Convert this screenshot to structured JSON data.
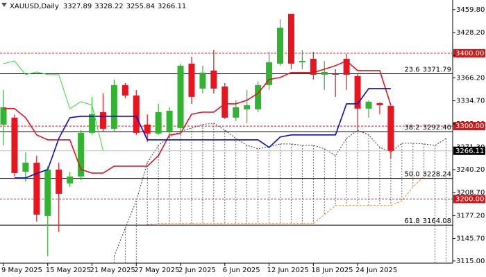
{
  "chart_data": {
    "type": "candlestick",
    "title": "XAUUSD,Daily",
    "categories": [
      "9 May 2025",
      null,
      null,
      null,
      "15 May 2025",
      null,
      null,
      null,
      "21 May 2025",
      null,
      null,
      null,
      "27 May 2025",
      null,
      null,
      null,
      "2 Jun 2025",
      null,
      null,
      null,
      "6 Jun 2025",
      null,
      null,
      null,
      "12 Jun 2025",
      null,
      null,
      null,
      "18 Jun 2025",
      null,
      null,
      null,
      "24 Jun 2025",
      null,
      null,
      null,
      null,
      null,
      null,
      null,
      null
    ],
    "open": [
      3302,
      3311.6,
      3237.5,
      3249.9,
      3176.7,
      3240.4,
      3221.4,
      3230.9,
      3290.7,
      3319.2,
      3296.4,
      3356.3,
      3342,
      3302.1,
      3289.8,
      3292.6,
      3297.4,
      3385.7,
      3351.5,
      3376.2,
      3354.4,
      3311.6,
      3323,
      3323,
      3356.3,
      3385.7,
      3454.1,
      3387.6,
      3392.4,
      3370.5,
      3371.5,
      3392.4,
      3368.6,
      3324,
      3331.6,
      3327.89,
      null,
      null,
      null,
      null,
      null
    ],
    "high": [
      3349.6,
      3316,
      3264,
      3259.4,
      3245,
      3249.9,
      3237.5,
      3294.5,
      3340.1,
      3344.9,
      3363.9,
      3359.1,
      3349.6,
      3316,
      3330.6,
      3326,
      3385.7,
      3395.2,
      3382.9,
      3404.7,
      3359.1,
      3335.4,
      3349.6,
      3361,
      3401.9,
      3446.5,
      3454.1,
      3404.7,
      3401.9,
      3389.5,
      3378.1,
      3399,
      3371.5,
      3335.4,
      3332.5,
      3328.22,
      null,
      null,
      null,
      null,
      null
    ],
    "low": [
      3273.6,
      3231,
      3224,
      3169,
      3121.7,
      3154.9,
      3216.6,
      3226,
      3287.9,
      3292.6,
      3292.6,
      3338.2,
      3287.9,
      3278.4,
      3287.9,
      3287.9,
      3292.6,
      3330.6,
      3344.9,
      3344.9,
      3309.7,
      3306.9,
      3304,
      3319.2,
      3349.6,
      3382.9,
      3378.1,
      3378.1,
      3363.9,
      3349.6,
      3340.1,
      3349.6,
      3294.5,
      3311.6,
      3316.4,
      3255.84,
      null,
      null,
      null,
      null,
      null
    ],
    "close": [
      3326,
      3235.6,
      3249.9,
      3178.6,
      3240.4,
      3207.1,
      3230.9,
      3290.7,
      3316.4,
      3296.4,
      3356.3,
      3342,
      3290.7,
      3289.8,
      3319.2,
      3321.1,
      3382.9,
      3340.1,
      3373.4,
      3351.5,
      3311.6,
      3325.9,
      3328.7,
      3356.3,
      3387.6,
      3435.1,
      3385.7,
      3389.5,
      3370.5,
      3374.3,
      3370.5,
      3370.5,
      3324,
      3333.5,
      3328.7,
      3266.11,
      null,
      null,
      null,
      null,
      null
    ],
    "up_color": "#32b432",
    "down_color": "#e8141e",
    "lines": [
      {
        "color": "#e0141e",
        "width": 1.6,
        "dash": "none",
        "values": [
          3324.0,
          3324.0,
          3311.6,
          3287.9,
          3281.2,
          3281.2,
          3281.2,
          3240.4,
          3235.6,
          3235.6,
          3245.1,
          3245.1,
          3245.1,
          3245.1,
          3259.4,
          3287.9,
          3289.8,
          3316.4,
          3319.2,
          3319.2,
          3330.6,
          3330.6,
          3335.4,
          3344.9,
          3363.9,
          3366.7,
          3373.4,
          3373.4,
          3373.4,
          3378.1,
          3382.9,
          3389.5,
          3376.2,
          3376.2,
          3376.2,
          3328.7,
          null,
          null,
          null,
          null,
          null
        ]
      },
      {
        "color": "#0a0ac8",
        "width": 1.6,
        "dash": "none",
        "values": [
          null,
          3228.9,
          3228.9,
          3235,
          3240.4,
          3283.1,
          3311.6,
          3313.5,
          3313.5,
          3313.5,
          3313.5,
          3313.5,
          3313.5,
          3281.2,
          3281.2,
          3281.2,
          3281.2,
          3281.2,
          3281.2,
          3281.2,
          3281.2,
          3281.2,
          3281.2,
          3281.2,
          3270.8,
          3285,
          3287.9,
          3287.9,
          3287.9,
          3287.9,
          3287.9,
          3330.6,
          3330.6,
          3351.5,
          3351.5,
          3351.5,
          null,
          null,
          null,
          null,
          null
        ]
      },
      {
        "color": "#33dd33",
        "width": 1,
        "dash": "none",
        "values": [
          3385.7,
          3389.5,
          3370.5,
          3374.3,
          3370.5,
          3370.5,
          3324,
          3333.5,
          3328.7,
          3266.11,
          null,
          null,
          null,
          null,
          null,
          null,
          null,
          null,
          null,
          null,
          null,
          null,
          null,
          null,
          null,
          null,
          null,
          null,
          null,
          null,
          null,
          null,
          null,
          null,
          null,
          null,
          null,
          null,
          null,
          null,
          null
        ]
      }
    ],
    "cloud": {
      "hatch_color": "#444444",
      "span_a": {
        "color": "#333333",
        "dash": "2,2",
        "values": [
          null,
          null,
          null,
          null,
          null,
          null,
          null,
          null,
          null,
          null,
          3121.6,
          3159.6,
          3197.6,
          3249.9,
          3273.6,
          3285.0,
          3292.6,
          3297.4,
          3302.1,
          3304.0,
          3294.5,
          3283.1,
          3273.6,
          3268.9,
          3271.7,
          3275.5,
          3275.5,
          3273.6,
          3273.6,
          3268.9,
          3259.4,
          3283.1,
          3294.5,
          3287.9,
          3270.8,
          3264.1,
          3276.5,
          3276.5,
          3275.5,
          3273.6,
          3283.1
        ]
      },
      "span_b": {
        "color": "#e8903a",
        "dash": "3,2",
        "values": [
          null,
          null,
          null,
          null,
          null,
          null,
          null,
          null,
          null,
          null,
          null,
          null,
          null,
          3164.4,
          3166.3,
          3166.3,
          3166.3,
          3166.3,
          3166.3,
          3166.3,
          3166.3,
          3166.3,
          3166.3,
          3166.3,
          3166.3,
          3166.3,
          3166.3,
          3166.3,
          3166.3,
          3178.6,
          3191.0,
          3191.0,
          3191.0,
          3191.0,
          3191.0,
          3191.0,
          3197.6,
          3216.6,
          3230.9,
          null,
          null
        ]
      }
    },
    "levels": [
      {
        "value": 3400,
        "label": "3400.00",
        "color": "#d01818"
      },
      {
        "value": 3300,
        "label": "3300.00",
        "color": "#d01818"
      },
      {
        "value": 3200,
        "label": "3200.00",
        "color": "#d01818"
      }
    ],
    "fibo": [
      {
        "ratio": "23.6",
        "price": {
          "value": 3371.79,
          "label": "3371.79"
        }
      },
      {
        "ratio": "38.2",
        "price": {
          "value": 3292.4,
          "label": "3292.40"
        }
      },
      {
        "ratio": "50.0",
        "price": {
          "value": 3228.24,
          "label": "3228.24"
        }
      },
      {
        "ratio": "61.8",
        "price": {
          "value": 3164.08,
          "label": "3164.08"
        }
      }
    ],
    "ylim": [
      3112,
      3473
    ],
    "yticks": [
      {
        "value": 3459.8,
        "label": "3459.80"
      },
      {
        "value": 3428.2,
        "label": "3428.20"
      },
      {
        "value": 3397,
        "label": "3397.00"
      },
      {
        "value": 3366.2,
        "label": "3366.20"
      },
      {
        "value": 3334.7,
        "label": "3334.70"
      },
      {
        "value": 3303,
        "label": "3303.00"
      },
      {
        "value": 3271.3,
        "label": "3271.30"
      },
      {
        "value": 3240.2,
        "label": "3240.20"
      },
      {
        "value": 3208.7,
        "label": "3208.70"
      },
      {
        "value": 3177.2,
        "label": "3177.20"
      },
      {
        "value": 3145.7,
        "label": "3145.70"
      },
      {
        "value": 3115,
        "label": "3115.00"
      }
    ]
  }
}
